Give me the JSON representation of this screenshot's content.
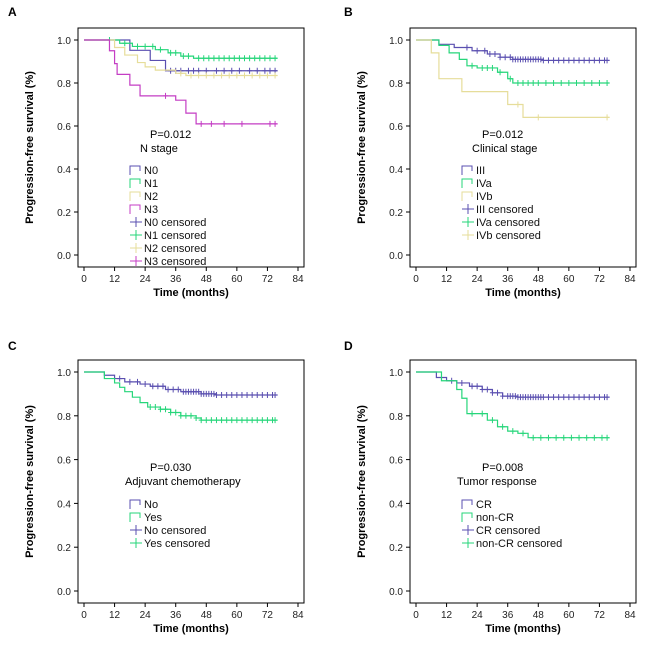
{
  "chart_data": [
    {
      "type": "line",
      "panel_label": "A",
      "title": "N stage",
      "p_value": "P=0.012",
      "xlabel": "Time (months)",
      "ylabel": "Progression-free survival (%)",
      "xlim": [
        0,
        84
      ],
      "ylim": [
        0.0,
        1.0
      ],
      "xticks": [
        "0",
        "12",
        "24",
        "36",
        "48",
        "60",
        "72",
        "84"
      ],
      "yticks": [
        "0.0",
        "0.2",
        "0.4",
        "0.6",
        "0.8",
        "1.0"
      ],
      "legend": [
        "N0",
        "N1",
        "N2",
        "N3",
        "N0 censored",
        "N1 censored",
        "N2 censored",
        "N3 censored"
      ],
      "series": [
        {
          "name": "N0",
          "color": "#5a4fb0",
          "steps": [
            [
              0,
              1.0
            ],
            [
              18,
              0.952
            ],
            [
              26,
              0.905
            ],
            [
              32,
              0.857
            ],
            [
              76,
              0.857
            ]
          ],
          "censored_x": [
            34,
            36,
            38,
            41,
            43,
            45,
            48,
            52,
            55,
            58,
            61,
            65,
            68,
            71,
            73,
            75
          ]
        },
        {
          "name": "N1",
          "color": "#26d67a",
          "steps": [
            [
              0,
              1.0
            ],
            [
              14,
              0.985
            ],
            [
              19,
              0.97
            ],
            [
              28,
              0.955
            ],
            [
              33,
              0.94
            ],
            [
              38,
              0.925
            ],
            [
              43,
              0.915
            ],
            [
              76,
              0.915
            ]
          ],
          "censored_x": [
            10,
            16,
            21,
            24,
            27,
            30,
            34,
            36,
            39,
            41,
            45,
            47,
            49,
            51,
            53,
            55,
            57,
            59,
            61,
            63,
            65,
            67,
            69,
            71,
            73,
            75
          ]
        },
        {
          "name": "N2",
          "color": "#e6dd9a",
          "steps": [
            [
              0,
              1.0
            ],
            [
              12,
              0.965
            ],
            [
              16,
              0.93
            ],
            [
              21,
              0.895
            ],
            [
              24,
              0.875
            ],
            [
              28,
              0.86
            ],
            [
              36,
              0.845
            ],
            [
              40,
              0.835
            ],
            [
              76,
              0.835
            ]
          ],
          "censored_x": [
            38,
            42,
            45,
            48,
            51,
            54,
            57,
            60,
            63,
            66,
            69,
            72,
            75
          ]
        },
        {
          "name": "N3",
          "color": "#c43dc4",
          "steps": [
            [
              0,
              1.0
            ],
            [
              10,
              0.95
            ],
            [
              12,
              0.89
            ],
            [
              13,
              0.84
            ],
            [
              18,
              0.79
            ],
            [
              22,
              0.74
            ],
            [
              36,
              0.72
            ],
            [
              40,
              0.66
            ],
            [
              44,
              0.61
            ],
            [
              76,
              0.61
            ]
          ],
          "censored_x": [
            32,
            46,
            50,
            55,
            62,
            73,
            75
          ]
        }
      ],
      "legend_pos": "center"
    },
    {
      "type": "line",
      "panel_label": "B",
      "title": "Clinical stage",
      "p_value": "P=0.012",
      "xlabel": "Time (months)",
      "ylabel": "Progression-free survival (%)",
      "xlim": [
        0,
        84
      ],
      "ylim": [
        0.0,
        1.0
      ],
      "xticks": [
        "0",
        "12",
        "24",
        "36",
        "48",
        "60",
        "72",
        "84"
      ],
      "yticks": [
        "0.0",
        "0.2",
        "0.4",
        "0.6",
        "0.8",
        "1.0"
      ],
      "legend": [
        "III",
        "IVa",
        "IVb",
        "III censored",
        "IVa censored",
        "IVb censored"
      ],
      "series": [
        {
          "name": "III",
          "color": "#5a4fb0",
          "steps": [
            [
              0,
              1.0
            ],
            [
              9,
              0.98
            ],
            [
              15,
              0.965
            ],
            [
              22,
              0.95
            ],
            [
              28,
              0.935
            ],
            [
              33,
              0.92
            ],
            [
              38,
              0.91
            ],
            [
              50,
              0.905
            ],
            [
              76,
              0.905
            ]
          ],
          "censored_x": [
            20,
            24,
            27,
            29,
            31,
            33,
            35,
            37,
            38,
            39,
            40,
            41,
            42,
            43,
            44,
            45,
            46,
            47,
            48,
            49,
            50,
            52,
            54,
            56,
            58,
            60,
            62,
            64,
            66,
            68,
            70,
            72,
            74,
            75
          ]
        },
        {
          "name": "IVa",
          "color": "#26d67a",
          "steps": [
            [
              0,
              1.0
            ],
            [
              9,
              0.975
            ],
            [
              13,
              0.94
            ],
            [
              17,
              0.91
            ],
            [
              20,
              0.88
            ],
            [
              24,
              0.87
            ],
            [
              32,
              0.85
            ],
            [
              36,
              0.82
            ],
            [
              38,
              0.8
            ],
            [
              76,
              0.8
            ]
          ],
          "censored_x": [
            22,
            26,
            28,
            30,
            33,
            37,
            40,
            42,
            44,
            46,
            48,
            51,
            54,
            57,
            60,
            63,
            66,
            69,
            72,
            75
          ]
        },
        {
          "name": "IVb",
          "color": "#e6dd9a",
          "steps": [
            [
              0,
              1.0
            ],
            [
              6,
              0.94
            ],
            [
              9,
              0.82
            ],
            [
              18,
              0.76
            ],
            [
              36,
              0.7
            ],
            [
              42,
              0.64
            ],
            [
              76,
              0.64
            ]
          ],
          "censored_x": [
            40,
            48,
            75
          ]
        }
      ],
      "legend_pos": "center"
    },
    {
      "type": "line",
      "panel_label": "C",
      "title": "Adjuvant chemotherapy",
      "p_value": "P=0.030",
      "xlabel": "Time (months)",
      "ylabel": "Progression-free survival (%)",
      "xlim": [
        0,
        84
      ],
      "ylim": [
        0.0,
        1.0
      ],
      "xticks": [
        "0",
        "12",
        "24",
        "36",
        "48",
        "60",
        "72",
        "84"
      ],
      "yticks": [
        "0.0",
        "0.2",
        "0.4",
        "0.6",
        "0.8",
        "1.0"
      ],
      "legend": [
        "No",
        "Yes",
        "No censored",
        "Yes censored"
      ],
      "series": [
        {
          "name": "No",
          "color": "#5a4fb0",
          "steps": [
            [
              0,
              1.0
            ],
            [
              8,
              0.985
            ],
            [
              12,
              0.97
            ],
            [
              16,
              0.955
            ],
            [
              22,
              0.945
            ],
            [
              26,
              0.935
            ],
            [
              32,
              0.92
            ],
            [
              38,
              0.91
            ],
            [
              46,
              0.9
            ],
            [
              52,
              0.895
            ],
            [
              76,
              0.895
            ]
          ],
          "censored_x": [
            14,
            18,
            21,
            24,
            27,
            29,
            31,
            33,
            35,
            37,
            39,
            40,
            41,
            42,
            43,
            44,
            45,
            46,
            47,
            48,
            49,
            50,
            51,
            52,
            54,
            56,
            58,
            60,
            62,
            64,
            66,
            68,
            70,
            72,
            74,
            75
          ]
        },
        {
          "name": "Yes",
          "color": "#26d67a",
          "steps": [
            [
              0,
              1.0
            ],
            [
              8,
              0.97
            ],
            [
              12,
              0.95
            ],
            [
              14,
              0.93
            ],
            [
              16,
              0.91
            ],
            [
              19,
              0.885
            ],
            [
              22,
              0.86
            ],
            [
              25,
              0.84
            ],
            [
              30,
              0.83
            ],
            [
              34,
              0.815
            ],
            [
              38,
              0.8
            ],
            [
              44,
              0.79
            ],
            [
              46,
              0.78
            ],
            [
              76,
              0.78
            ]
          ],
          "censored_x": [
            26,
            28,
            30,
            32,
            34,
            36,
            38,
            40,
            42,
            44,
            46,
            48,
            50,
            52,
            54,
            56,
            58,
            60,
            62,
            64,
            66,
            68,
            70,
            72,
            74,
            75
          ]
        }
      ],
      "legend_pos": "center"
    },
    {
      "type": "line",
      "panel_label": "D",
      "title": "Tumor response",
      "p_value": "P=0.008",
      "xlabel": "Time (months)",
      "ylabel": "Progression-free survival (%)",
      "xlim": [
        0,
        84
      ],
      "ylim": [
        0.0,
        1.0
      ],
      "xticks": [
        "0",
        "12",
        "24",
        "36",
        "48",
        "60",
        "72",
        "84"
      ],
      "yticks": [
        "0.0",
        "0.2",
        "0.4",
        "0.6",
        "0.8",
        "1.0"
      ],
      "legend": [
        "CR",
        "non-CR",
        "CR censored",
        "non-CR censored"
      ],
      "series": [
        {
          "name": "CR",
          "color": "#5a4fb0",
          "steps": [
            [
              0,
              1.0
            ],
            [
              8,
              0.975
            ],
            [
              12,
              0.96
            ],
            [
              16,
              0.95
            ],
            [
              21,
              0.935
            ],
            [
              26,
              0.92
            ],
            [
              30,
              0.905
            ],
            [
              34,
              0.89
            ],
            [
              40,
              0.885
            ],
            [
              76,
              0.885
            ]
          ],
          "censored_x": [
            14,
            18,
            22,
            24,
            26,
            28,
            30,
            32,
            34,
            36,
            37,
            38,
            39,
            40,
            41,
            42,
            43,
            44,
            45,
            46,
            47,
            48,
            49,
            50,
            52,
            54,
            56,
            58,
            60,
            62,
            64,
            66,
            68,
            70,
            72,
            74,
            75
          ]
        },
        {
          "name": "non-CR",
          "color": "#26d67a",
          "steps": [
            [
              0,
              1.0
            ],
            [
              10,
              0.96
            ],
            [
              16,
              0.92
            ],
            [
              18,
              0.88
            ],
            [
              20,
              0.81
            ],
            [
              28,
              0.78
            ],
            [
              32,
              0.75
            ],
            [
              36,
              0.73
            ],
            [
              40,
              0.72
            ],
            [
              44,
              0.7
            ],
            [
              76,
              0.7
            ]
          ],
          "censored_x": [
            22,
            26,
            30,
            34,
            38,
            42,
            46,
            49,
            52,
            55,
            58,
            61,
            64,
            67,
            70,
            73,
            75
          ]
        }
      ],
      "legend_pos": "center"
    }
  ]
}
